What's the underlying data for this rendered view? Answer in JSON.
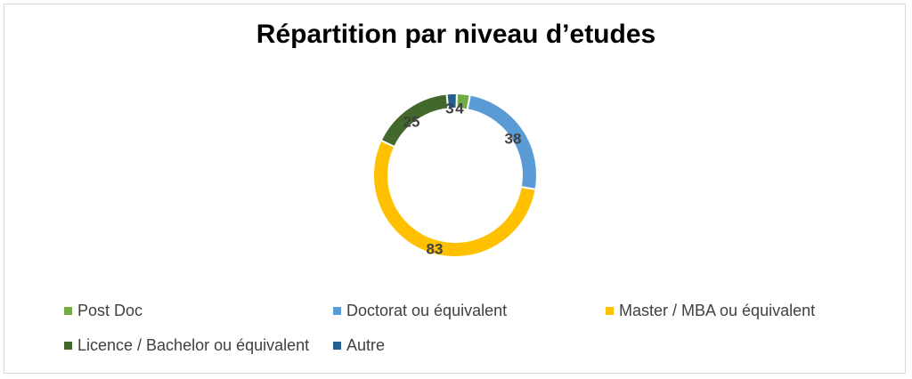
{
  "chart_data": {
    "type": "pie",
    "subtype": "doughnut",
    "title": "Répartition par niveau d’etudes",
    "slices": [
      {
        "label": "Post Doc",
        "value": 4,
        "color": "#70ad47"
      },
      {
        "label": "Doctorat ou équivalent",
        "value": 38,
        "color": "#5b9bd5"
      },
      {
        "label": "Master / MBA ou équivalent",
        "value": 83,
        "color": "#ffc000"
      },
      {
        "label": "Licence / Bachelor ou équivalent",
        "value": 25,
        "color": "#43682b"
      },
      {
        "label": "Autre",
        "value": 3,
        "color": "#255e91"
      }
    ],
    "legend_position": "bottom"
  }
}
